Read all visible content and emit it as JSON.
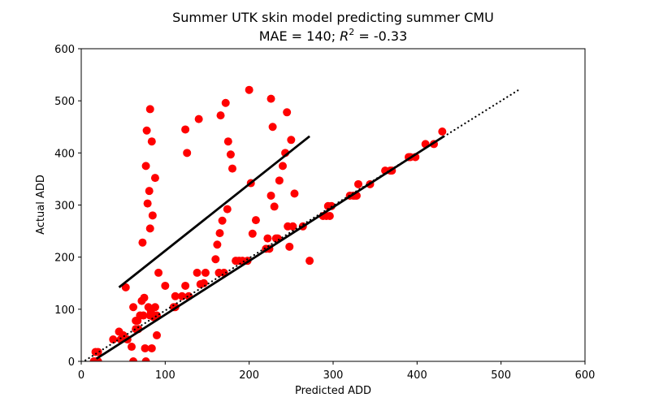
{
  "chart_data": {
    "type": "scatter",
    "title_line1": "Summer UTK skin model predicting summer CMU",
    "title_line2_prefix": "MAE = 140; ",
    "title_r2_symbol": "R",
    "title_r2_exp": "2",
    "title_line2_suffix": " = -0.33",
    "xlabel": "Predicted ADD",
    "ylabel": "Actual ADD",
    "xlim": [
      0,
      600
    ],
    "ylim": [
      0,
      600
    ],
    "xticks": [
      "0",
      "100",
      "200",
      "300",
      "400",
      "500",
      "600"
    ],
    "yticks": [
      "0",
      "100",
      "200",
      "300",
      "400",
      "500",
      "600"
    ],
    "grid": false,
    "point_color": "#ff0000",
    "line_color": "#000000",
    "points": [
      [
        15,
        0
      ],
      [
        17,
        18
      ],
      [
        18,
        0
      ],
      [
        20,
        0
      ],
      [
        20,
        18
      ],
      [
        38,
        42
      ],
      [
        45,
        57
      ],
      [
        47,
        42
      ],
      [
        50,
        50
      ],
      [
        53,
        142
      ],
      [
        55,
        42
      ],
      [
        60,
        28
      ],
      [
        62,
        0
      ],
      [
        62,
        104
      ],
      [
        65,
        78
      ],
      [
        65,
        62
      ],
      [
        67,
        78
      ],
      [
        68,
        62
      ],
      [
        70,
        88
      ],
      [
        72,
        116
      ],
      [
        73,
        228
      ],
      [
        74,
        88
      ],
      [
        75,
        122
      ],
      [
        76,
        25
      ],
      [
        77,
        0
      ],
      [
        77,
        375
      ],
      [
        78,
        443
      ],
      [
        79,
        303
      ],
      [
        80,
        104
      ],
      [
        81,
        327
      ],
      [
        82,
        484
      ],
      [
        82,
        88
      ],
      [
        82,
        255
      ],
      [
        83,
        95
      ],
      [
        84,
        25
      ],
      [
        84,
        422
      ],
      [
        85,
        280
      ],
      [
        86,
        85
      ],
      [
        88,
        352
      ],
      [
        88,
        104
      ],
      [
        90,
        50
      ],
      [
        90,
        88
      ],
      [
        92,
        170
      ],
      [
        100,
        145
      ],
      [
        110,
        104
      ],
      [
        112,
        104
      ],
      [
        112,
        125
      ],
      [
        120,
        125
      ],
      [
        124,
        145
      ],
      [
        124,
        445
      ],
      [
        126,
        400
      ],
      [
        128,
        125
      ],
      [
        138,
        170
      ],
      [
        140,
        465
      ],
      [
        142,
        148
      ],
      [
        146,
        150
      ],
      [
        148,
        170
      ],
      [
        160,
        196
      ],
      [
        162,
        224
      ],
      [
        164,
        170
      ],
      [
        165,
        246
      ],
      [
        166,
        472
      ],
      [
        168,
        270
      ],
      [
        170,
        170
      ],
      [
        172,
        496
      ],
      [
        174,
        292
      ],
      [
        175,
        422
      ],
      [
        178,
        397
      ],
      [
        180,
        370
      ],
      [
        184,
        193
      ],
      [
        188,
        193
      ],
      [
        192,
        193
      ],
      [
        198,
        193
      ],
      [
        200,
        521
      ],
      [
        202,
        342
      ],
      [
        204,
        245
      ],
      [
        208,
        271
      ],
      [
        220,
        216
      ],
      [
        222,
        236
      ],
      [
        224,
        216
      ],
      [
        226,
        504
      ],
      [
        226,
        318
      ],
      [
        228,
        450
      ],
      [
        230,
        297
      ],
      [
        232,
        236
      ],
      [
        234,
        236
      ],
      [
        236,
        347
      ],
      [
        240,
        375
      ],
      [
        243,
        400
      ],
      [
        245,
        478
      ],
      [
        246,
        259
      ],
      [
        248,
        220
      ],
      [
        250,
        425
      ],
      [
        252,
        259
      ],
      [
        254,
        322
      ],
      [
        264,
        259
      ],
      [
        272,
        193
      ],
      [
        288,
        279
      ],
      [
        292,
        279
      ],
      [
        294,
        298
      ],
      [
        296,
        279
      ],
      [
        298,
        298
      ],
      [
        320,
        318
      ],
      [
        324,
        318
      ],
      [
        326,
        318
      ],
      [
        328,
        318
      ],
      [
        330,
        340
      ],
      [
        344,
        340
      ],
      [
        362,
        366
      ],
      [
        368,
        366
      ],
      [
        370,
        366
      ],
      [
        390,
        392
      ],
      [
        392,
        392
      ],
      [
        398,
        392
      ],
      [
        410,
        417
      ],
      [
        420,
        417
      ],
      [
        430,
        441
      ]
    ],
    "lines": [
      {
        "style": "solid",
        "x": [
          45,
          272
        ],
        "y": [
          142,
          432
        ]
      },
      {
        "style": "solid",
        "x": [
          18,
          432
        ],
        "y": [
          5,
          432
        ]
      },
      {
        "style": "dotted",
        "x": [
          5,
          522
        ],
        "y": [
          2,
          522
        ]
      }
    ]
  }
}
